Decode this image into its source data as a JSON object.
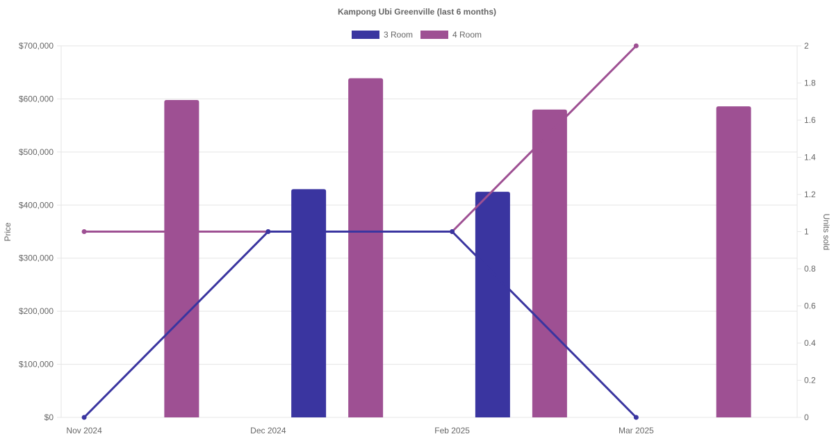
{
  "chart_data": {
    "type": "bar",
    "title": "Kampong Ubi Greenville (last 6 months)",
    "categories": [
      "Nov 2024",
      "Dec 2024",
      "Feb 2025",
      "Mar 2025"
    ],
    "legend_position": "top",
    "grid": true,
    "y_left": {
      "label": "Price",
      "range": [
        0,
        700000
      ],
      "ticks": [
        "$0",
        "$100,000",
        "$200,000",
        "$300,000",
        "$400,000",
        "$500,000",
        "$600,000",
        "$700,000"
      ]
    },
    "y_right": {
      "label": "Units sold",
      "range": [
        0,
        2
      ],
      "ticks": [
        "0",
        "0.2",
        "0.4",
        "0.6",
        "0.8",
        "1",
        "1.2",
        "1.4",
        "1.6",
        "1.8",
        "2"
      ]
    },
    "series": [
      {
        "name": "3 Room",
        "color": "#3a35a0",
        "price": [
          null,
          430000,
          425000,
          null
        ],
        "units": [
          0,
          1,
          1,
          0
        ]
      },
      {
        "name": "4 Room",
        "color": "#9e5093",
        "price": [
          598000,
          639000,
          580000,
          586000
        ],
        "units": [
          1,
          1,
          1,
          2
        ]
      }
    ]
  }
}
